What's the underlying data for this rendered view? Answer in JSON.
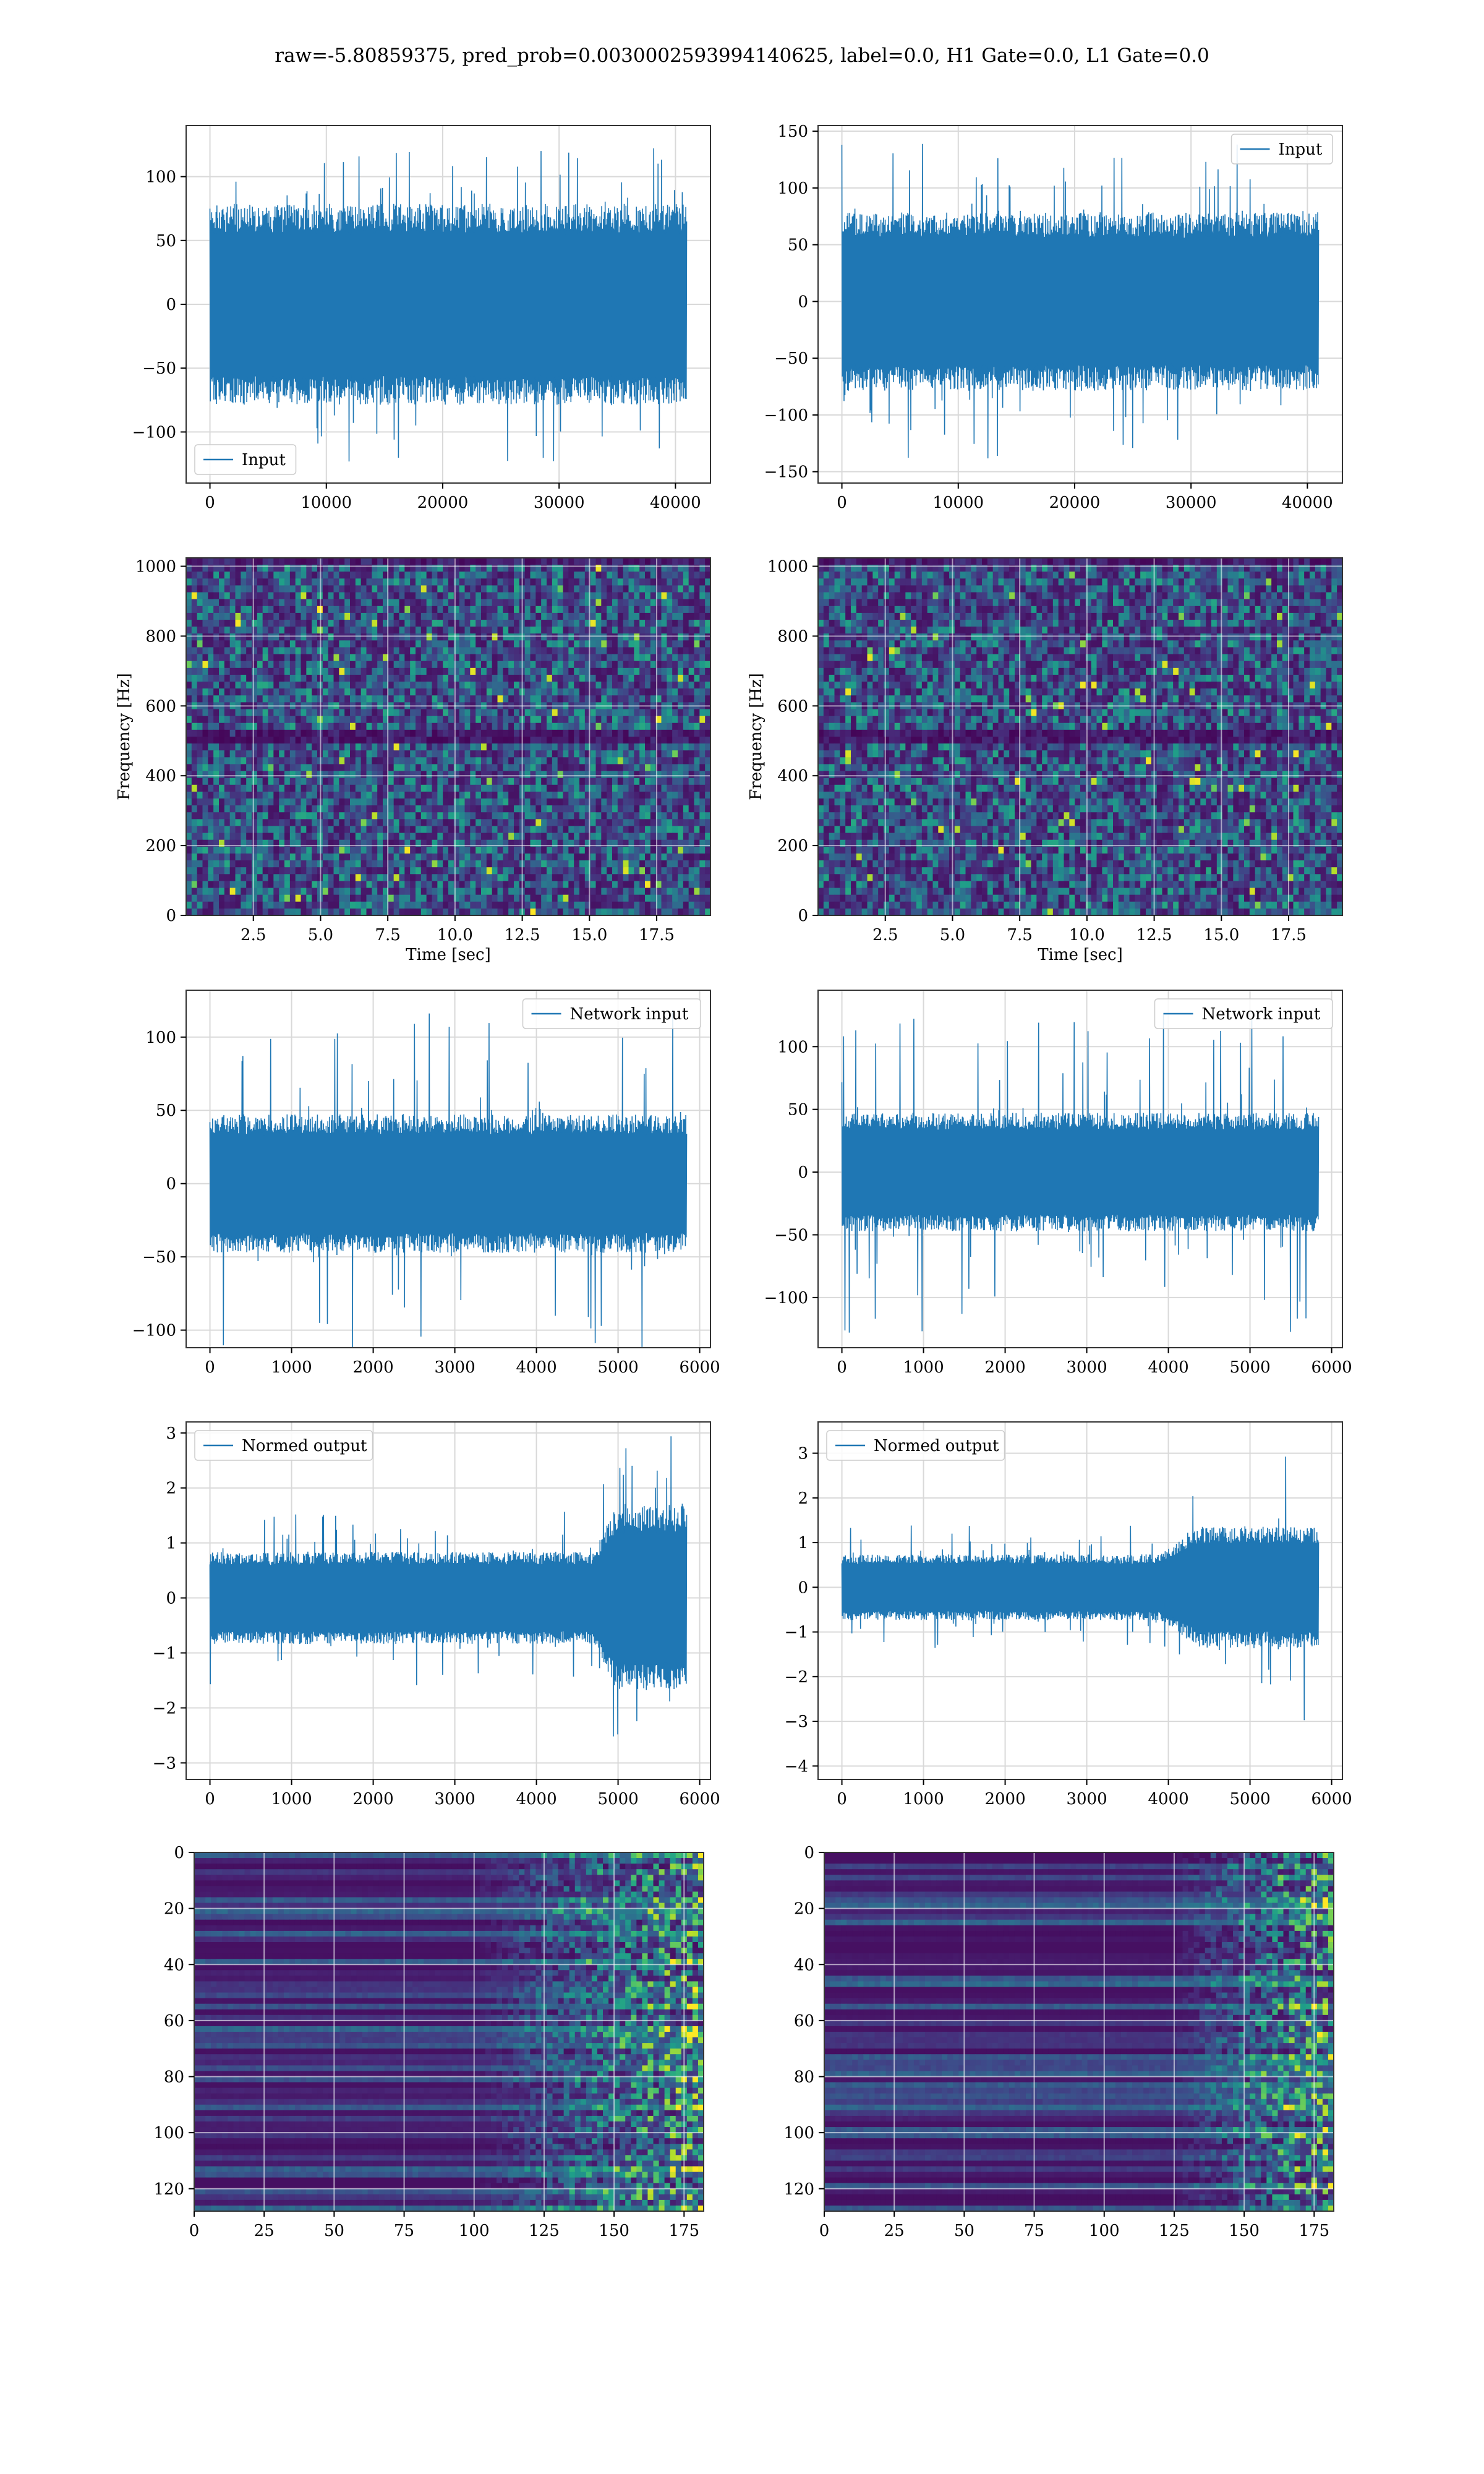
{
  "figure_title": "raw=-5.80859375, pred_prob=0.0030002593994140625, label=0.0, H1 Gate=0.0, L1 Gate=0.0",
  "colors": {
    "series": "#1f77b4",
    "grid": "#d9d9d9",
    "viridis_low": "#440154",
    "viridis_mid": "#2a788e",
    "viridis_high": "#fde725"
  },
  "chart_data": [
    {
      "id": "r1c1",
      "type": "line",
      "style": "noise",
      "series": [
        {
          "name": "Input"
        }
      ],
      "legend_position": "lower-left",
      "x_range": [
        0,
        40960
      ],
      "xlim": [
        -2048,
        43008
      ],
      "ylim": [
        -140,
        140
      ],
      "xticks": [
        0,
        10000,
        20000,
        30000,
        40000
      ],
      "xtick_labels": [
        "0",
        "10000",
        "20000",
        "30000",
        "40000"
      ],
      "yticks": [
        -100,
        -50,
        0,
        50,
        100
      ],
      "ytick_labels": [
        "−100",
        "−50",
        "0",
        "50",
        "100"
      ],
      "envelope": {
        "core": 75,
        "peak": 125
      },
      "grid": true
    },
    {
      "id": "r1c2",
      "type": "line",
      "style": "noise",
      "series": [
        {
          "name": "Input"
        }
      ],
      "legend_position": "upper-right",
      "x_range": [
        0,
        40960
      ],
      "xlim": [
        -2048,
        43008
      ],
      "ylim": [
        -160,
        155
      ],
      "xticks": [
        0,
        10000,
        20000,
        30000,
        40000
      ],
      "xtick_labels": [
        "0",
        "10000",
        "20000",
        "30000",
        "40000"
      ],
      "yticks": [
        -150,
        -100,
        -50,
        0,
        50,
        100,
        150
      ],
      "ytick_labels": [
        "−150",
        "−100",
        "−50",
        "0",
        "50",
        "100",
        "150"
      ],
      "envelope": {
        "core": 75,
        "peak": 140
      },
      "grid": true
    },
    {
      "id": "r2c1",
      "type": "heatmap",
      "style": "spectrogram",
      "xlabel": "Time [sec]",
      "ylabel": "Frequency [Hz]",
      "xlim": [
        0,
        19.5
      ],
      "ylim": [
        0,
        1024
      ],
      "xticks": [
        2.5,
        5,
        7.5,
        10,
        12.5,
        15,
        17.5
      ],
      "xtick_labels": [
        "2.5",
        "5.0",
        "7.5",
        "10.0",
        "12.5",
        "15.0",
        "17.5"
      ],
      "yticks": [
        0,
        200,
        400,
        600,
        800,
        1000
      ],
      "ytick_labels": [
        "0",
        "200",
        "400",
        "600",
        "800",
        "1000"
      ],
      "colormap": "viridis",
      "notch_hz": 510,
      "grid": true
    },
    {
      "id": "r2c2",
      "type": "heatmap",
      "style": "spectrogram",
      "xlabel": "Time [sec]",
      "ylabel": "Frequency [Hz]",
      "xlim": [
        0,
        19.5
      ],
      "ylim": [
        0,
        1024
      ],
      "xticks": [
        2.5,
        5,
        7.5,
        10,
        12.5,
        15,
        17.5
      ],
      "xtick_labels": [
        "2.5",
        "5.0",
        "7.5",
        "10.0",
        "12.5",
        "15.0",
        "17.5"
      ],
      "yticks": [
        0,
        200,
        400,
        600,
        800,
        1000
      ],
      "ytick_labels": [
        "0",
        "200",
        "400",
        "600",
        "800",
        "1000"
      ],
      "colormap": "viridis",
      "notch_hz": 510,
      "grid": true
    },
    {
      "id": "r3c1",
      "type": "line",
      "style": "noise",
      "series": [
        {
          "name": "Network input"
        }
      ],
      "legend_position": "upper-right",
      "x_range": [
        0,
        5840
      ],
      "xlim": [
        -292,
        6132
      ],
      "ylim": [
        -112,
        132
      ],
      "xticks": [
        0,
        1000,
        2000,
        3000,
        4000,
        5000,
        6000
      ],
      "xtick_labels": [
        "0",
        "1000",
        "2000",
        "3000",
        "4000",
        "5000",
        "6000"
      ],
      "yticks": [
        -100,
        -50,
        0,
        50,
        100
      ],
      "ytick_labels": [
        "−100",
        "−50",
        "0",
        "50",
        "100"
      ],
      "envelope": {
        "core": 45,
        "peak": 120
      },
      "grid": true
    },
    {
      "id": "r3c2",
      "type": "line",
      "style": "noise",
      "series": [
        {
          "name": "Network input"
        }
      ],
      "legend_position": "upper-right",
      "x_range": [
        0,
        5840
      ],
      "xlim": [
        -292,
        6132
      ],
      "ylim": [
        -140,
        145
      ],
      "xticks": [
        0,
        1000,
        2000,
        3000,
        4000,
        5000,
        6000
      ],
      "xtick_labels": [
        "0",
        "1000",
        "2000",
        "3000",
        "4000",
        "5000",
        "6000"
      ],
      "yticks": [
        -100,
        -50,
        0,
        50,
        100
      ],
      "ytick_labels": [
        "−100",
        "−50",
        "0",
        "50",
        "100"
      ],
      "envelope": {
        "core": 45,
        "peak": 130
      },
      "grid": true
    },
    {
      "id": "r4c1",
      "type": "line",
      "style": "noise",
      "series": [
        {
          "name": "Normed output"
        }
      ],
      "legend_position": "upper-left",
      "x_range": [
        0,
        5840
      ],
      "xlim": [
        -292,
        6132
      ],
      "ylim": [
        -3.3,
        3.2
      ],
      "xticks": [
        0,
        1000,
        2000,
        3000,
        4000,
        5000,
        6000
      ],
      "xtick_labels": [
        "0",
        "1000",
        "2000",
        "3000",
        "4000",
        "5000",
        "6000"
      ],
      "yticks": [
        -3,
        -2,
        -1,
        0,
        1,
        2,
        3
      ],
      "ytick_labels": [
        "−3",
        "−2",
        "−1",
        "0",
        "1",
        "2",
        "3"
      ],
      "envelope": {
        "core": 0.8,
        "peak": 1.6,
        "burst_from": 4700,
        "burst_core": 1.6,
        "burst_peak": 3.0
      },
      "grid": true
    },
    {
      "id": "r4c2",
      "type": "line",
      "style": "noise",
      "series": [
        {
          "name": "Normed output"
        }
      ],
      "legend_position": "upper-left",
      "x_range": [
        0,
        5840
      ],
      "xlim": [
        -292,
        6132
      ],
      "ylim": [
        -4.3,
        3.7
      ],
      "xticks": [
        0,
        1000,
        2000,
        3000,
        4000,
        5000,
        6000
      ],
      "xtick_labels": [
        "0",
        "1000",
        "2000",
        "3000",
        "4000",
        "5000",
        "6000"
      ],
      "yticks": [
        -4,
        -3,
        -2,
        -1,
        0,
        1,
        2,
        3
      ],
      "ytick_labels": [
        "−4",
        "−3",
        "−2",
        "−1",
        "0",
        "1",
        "2",
        "3"
      ],
      "envelope": {
        "core": 0.7,
        "peak": 1.4,
        "burst_from": 3900,
        "burst_core": 1.3,
        "burst_peak": 3.3
      },
      "grid": true
    },
    {
      "id": "r5c1",
      "type": "heatmap",
      "style": "features",
      "xlim": [
        0,
        182
      ],
      "ylim": [
        128,
        0
      ],
      "xticks": [
        0,
        25,
        50,
        75,
        100,
        125,
        150,
        175
      ],
      "xtick_labels": [
        "0",
        "25",
        "50",
        "75",
        "100",
        "125",
        "150",
        "175"
      ],
      "yticks": [
        0,
        20,
        40,
        60,
        80,
        100,
        120
      ],
      "ytick_labels": [
        "0",
        "20",
        "40",
        "60",
        "80",
        "100",
        "120"
      ],
      "colormap": "viridis",
      "onset_col": 100,
      "grid": true
    },
    {
      "id": "r5c2",
      "type": "heatmap",
      "style": "features",
      "xlim": [
        0,
        182
      ],
      "ylim": [
        128,
        0
      ],
      "xticks": [
        0,
        25,
        50,
        75,
        100,
        125,
        150,
        175
      ],
      "xtick_labels": [
        "0",
        "25",
        "50",
        "75",
        "100",
        "125",
        "150",
        "175"
      ],
      "yticks": [
        0,
        20,
        40,
        60,
        80,
        100,
        120
      ],
      "ytick_labels": [
        "0",
        "20",
        "40",
        "60",
        "80",
        "100",
        "120"
      ],
      "colormap": "viridis",
      "onset_col": 125,
      "grid": true
    }
  ]
}
